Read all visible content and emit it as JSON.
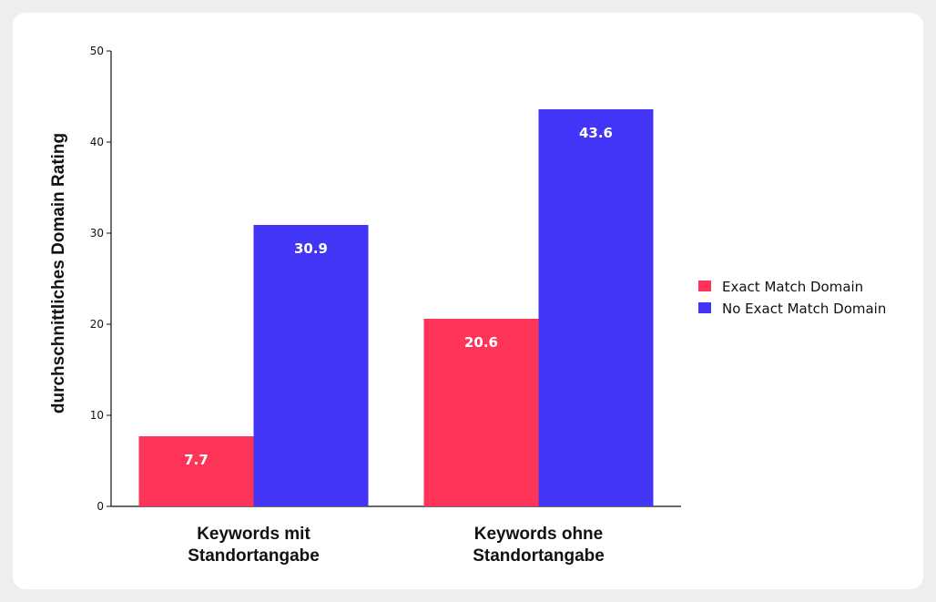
{
  "chart_data": {
    "type": "bar",
    "categories": [
      [
        "Keywords mit",
        "Standortangabe"
      ],
      [
        "Keywords ohne",
        "Standortangabe"
      ]
    ],
    "series": [
      {
        "name": "Exact Match Domain",
        "values": [
          7.7,
          20.6
        ],
        "color": "#fe3558"
      },
      {
        "name": "No Exact Match Domain",
        "values": [
          30.9,
          43.6
        ],
        "color": "#4235f5"
      }
    ],
    "ylabel": "durchschnittliches Domain Rating",
    "xlabel": "",
    "ylim": [
      0,
      50
    ],
    "yticks": [
      0,
      10,
      20,
      30,
      40,
      50
    ],
    "grid": false,
    "legend_position": "right",
    "data_labels": [
      "7.7",
      "20.6",
      "30.9",
      "43.6"
    ]
  }
}
